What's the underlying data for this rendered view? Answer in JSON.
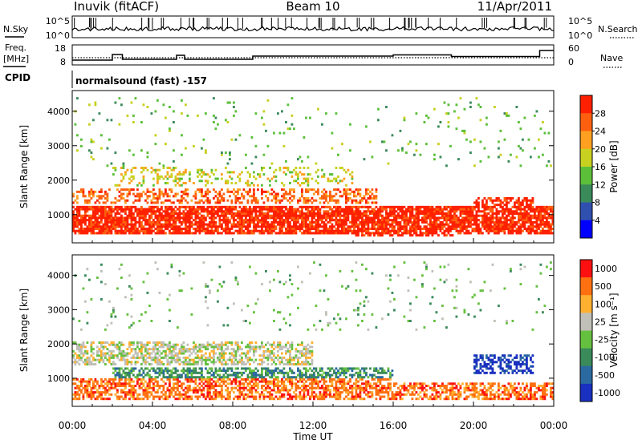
{
  "header": {
    "station": "Inuvik (fitACF)",
    "beam": "Beam 10",
    "date": "11/Apr/2011"
  },
  "status_panel": {
    "nsky_label": "N.Sky",
    "nsearch_label": "N.Search",
    "freq_label_top": "Freq.",
    "freq_label_bottom": "[MHz]",
    "nave_label": "Nave",
    "cpid_label": "CPID",
    "cpid_value": "normalsound (fast) -157",
    "noise_ticks_left": [
      "10^5",
      "10^0"
    ],
    "noise_ticks_right": [
      "10^5",
      "10^0"
    ],
    "freq_ticks": [
      "18",
      "8"
    ],
    "nave_ticks": [
      "60",
      "0"
    ]
  },
  "chart_data": [
    {
      "type": "heatmap",
      "name": "power",
      "ylabel": "Slant Range [km]",
      "ylim": [
        180,
        4600
      ],
      "yticks": [
        1000,
        2000,
        3000,
        4000
      ],
      "colorbar_label": "Power [dB]",
      "colorbar_ticks": [
        "4",
        "8",
        "12",
        "16",
        "20",
        "24",
        "28"
      ],
      "colorbar_colors": [
        "#0000ff",
        "#3050b0",
        "#3a8a5a",
        "#5cbf3a",
        "#c8d020",
        "#ffa020",
        "#ff6010",
        "#ff2000"
      ],
      "bands": [
        {
          "start": 0.0,
          "end": 24.0,
          "lo": 450,
          "hi": 1250,
          "density": 0.82,
          "level": 7
        },
        {
          "start": 0.0,
          "end": 15.2,
          "lo": 1300,
          "hi": 1750,
          "density": 0.45,
          "level": 6
        },
        {
          "start": 2.0,
          "end": 14.0,
          "lo": 1800,
          "hi": 2400,
          "density": 0.22,
          "level": 4
        },
        {
          "start": 14.0,
          "end": 19.0,
          "lo": 350,
          "hi": 850,
          "density": 0.55,
          "level": 7
        },
        {
          "start": 20.0,
          "end": 23.0,
          "lo": 600,
          "hi": 1500,
          "density": 0.5,
          "level": 7
        },
        {
          "start": 0.0,
          "end": 24.0,
          "lo": 2400,
          "hi": 4400,
          "density": 0.03,
          "level": 3
        }
      ]
    },
    {
      "type": "heatmap",
      "name": "velocity",
      "ylabel": "Slant Range [km]",
      "ylim": [
        180,
        4600
      ],
      "yticks": [
        1000,
        2000,
        3000,
        4000
      ],
      "colorbar_label": "Velocity [m s⁻¹]",
      "colorbar_ticks": [
        "1000",
        "500",
        "100",
        "25",
        "-25",
        "-100",
        "-500",
        "-1000"
      ],
      "colorbar_colors": [
        "#1a30c0",
        "#2a6aa0",
        "#3a8a5a",
        "#66c040",
        "#c0c0b8",
        "#ffb030",
        "#ff7010",
        "#ff1010"
      ],
      "bands": [
        {
          "start": 0.0,
          "end": 16.0,
          "lo": 400,
          "hi": 1000,
          "density": 0.6,
          "level": 6
        },
        {
          "start": 2.0,
          "end": 16.0,
          "lo": 600,
          "hi": 1300,
          "density": 0.6,
          "level": 2
        },
        {
          "start": 0.0,
          "end": 12.0,
          "lo": 1350,
          "hi": 2100,
          "density": 0.55,
          "level": 4
        },
        {
          "start": 16.0,
          "end": 24.0,
          "lo": 400,
          "hi": 900,
          "density": 0.55,
          "level": 6
        },
        {
          "start": 20.0,
          "end": 23.0,
          "lo": 1100,
          "hi": 1700,
          "density": 0.5,
          "level": 0
        },
        {
          "start": 0.0,
          "end": 24.0,
          "lo": 2400,
          "hi": 4400,
          "density": 0.03,
          "level": 3
        }
      ]
    }
  ],
  "time_axis": {
    "xlabel": "Time UT",
    "ticks": [
      "00:00",
      "04:00",
      "08:00",
      "12:00",
      "16:00",
      "20:00",
      "00:00"
    ],
    "xlim": [
      0,
      24
    ]
  }
}
